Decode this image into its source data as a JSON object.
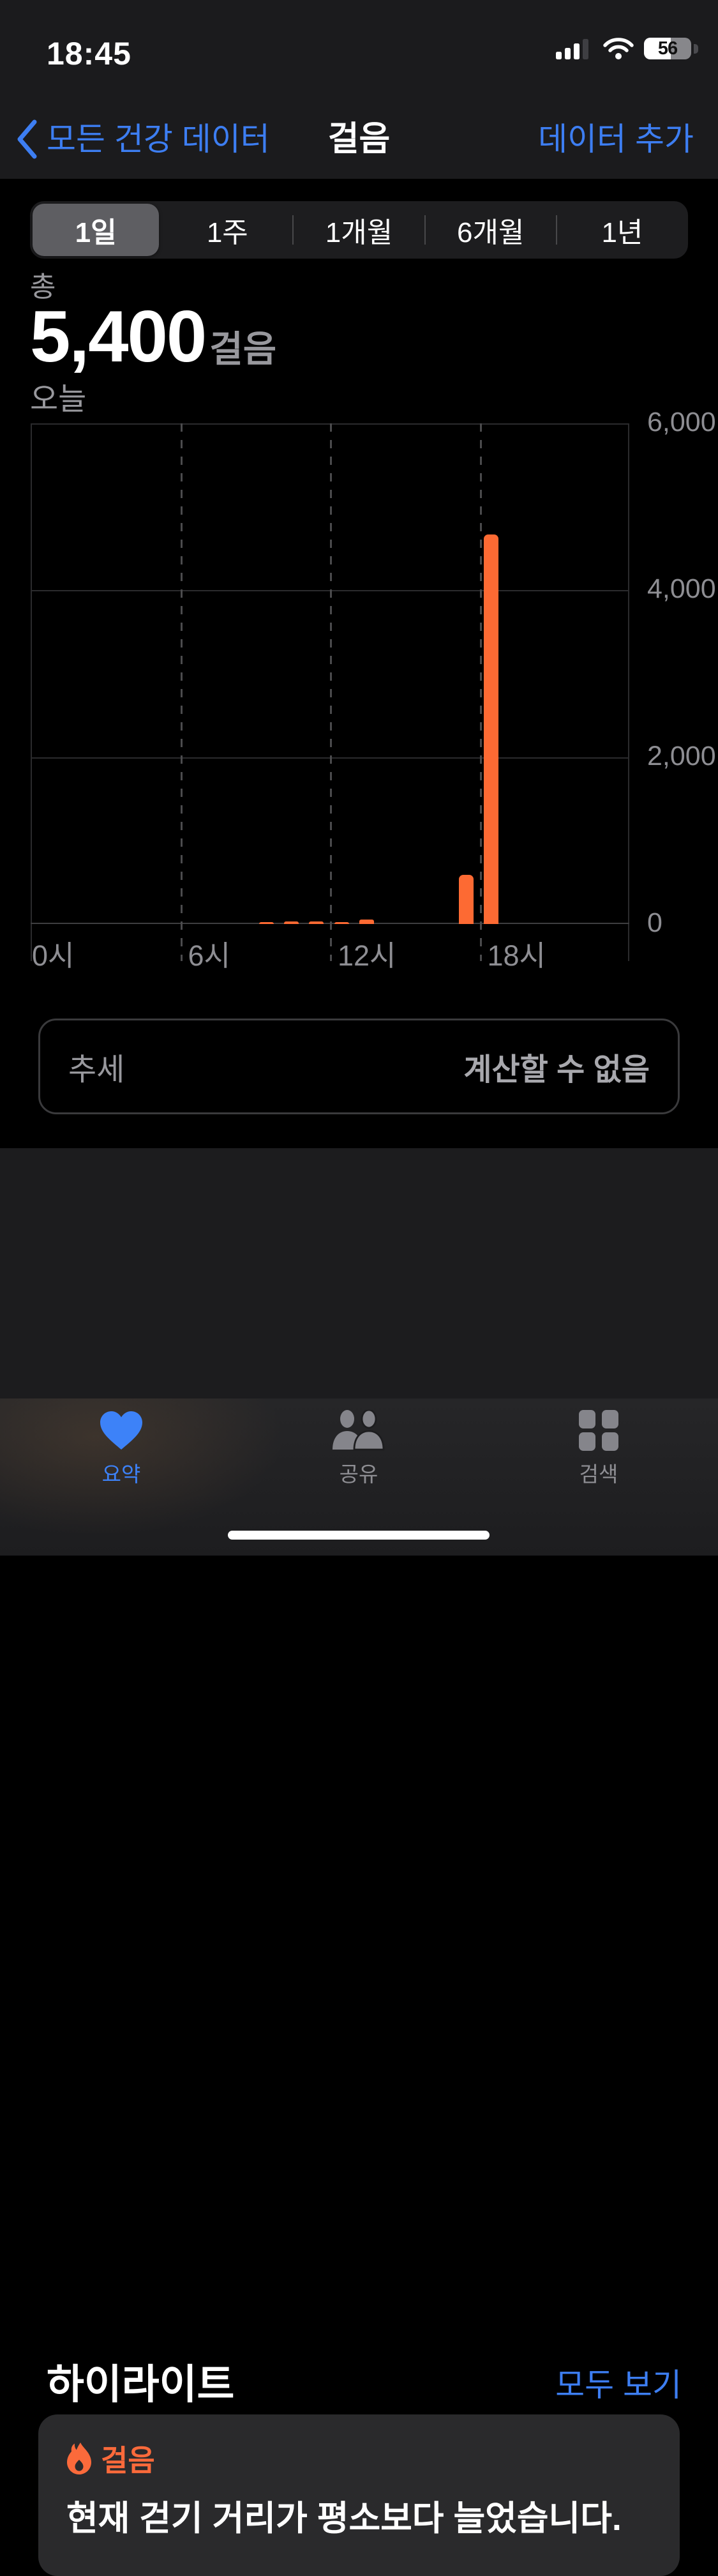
{
  "status_bar": {
    "time": "18:45",
    "battery_percent": "56",
    "signal": "3-of-4-bars",
    "wifi": "full"
  },
  "nav": {
    "back_label": "모든 건강 데이터",
    "title": "걸음",
    "add_button": "데이터 추가"
  },
  "range_selector": {
    "options": [
      "1일",
      "1주",
      "1개월",
      "6개월",
      "1년"
    ],
    "selected_index": 0
  },
  "summary": {
    "total_label": "총",
    "total_value": "5,400",
    "unit": "걸음",
    "period_label": "오늘"
  },
  "chart_data": {
    "type": "bar",
    "title": "",
    "x_unit": "hour_of_day",
    "values_by_hour": [
      0,
      0,
      0,
      0,
      0,
      0,
      0,
      0,
      0,
      20,
      30,
      30,
      15,
      50,
      0,
      0,
      0,
      590,
      4665,
      0,
      0,
      0,
      0,
      0
    ],
    "x_tick_hours": [
      0,
      6,
      12,
      18
    ],
    "x_tick_labels": [
      "0시",
      "6시",
      "12시",
      "18시"
    ],
    "y_ticks": [
      0,
      2000,
      4000,
      6000
    ],
    "y_tick_labels": [
      "0",
      "2,000",
      "4,000",
      "6,000"
    ],
    "ylim": [
      0,
      6000
    ],
    "grid": "horizontal solid, vertical dashed every 6h",
    "legend": "none",
    "bar_color": "#FD6A33"
  },
  "trend_card": {
    "label": "추세",
    "value": "계산할 수 없음"
  },
  "highlights": {
    "section_title": "하이라이트",
    "see_all": "모두 보기",
    "card": {
      "icon": "flame-icon",
      "category": "걸음",
      "message": "현재 걷기 거리가 평소보다 늘었습니다."
    }
  },
  "tab_bar": {
    "items": [
      {
        "icon": "heart-icon",
        "label": "요약",
        "active": true
      },
      {
        "icon": "people-icon",
        "label": "공유",
        "active": false
      },
      {
        "icon": "grid-icon",
        "label": "검색",
        "active": false
      }
    ]
  },
  "colors": {
    "accent_blue": "#3D7EF2",
    "tab_active_blue": "#3D82F8",
    "bar_orange": "#FD6A33",
    "header_bg": "#1B1B1D",
    "section_bg": "#1C1C1E",
    "card_bg": "#2A2A2C",
    "segment_selected": "#5E5E62",
    "secondary_text": "#98989D",
    "axis_text": "#8E8E93"
  }
}
